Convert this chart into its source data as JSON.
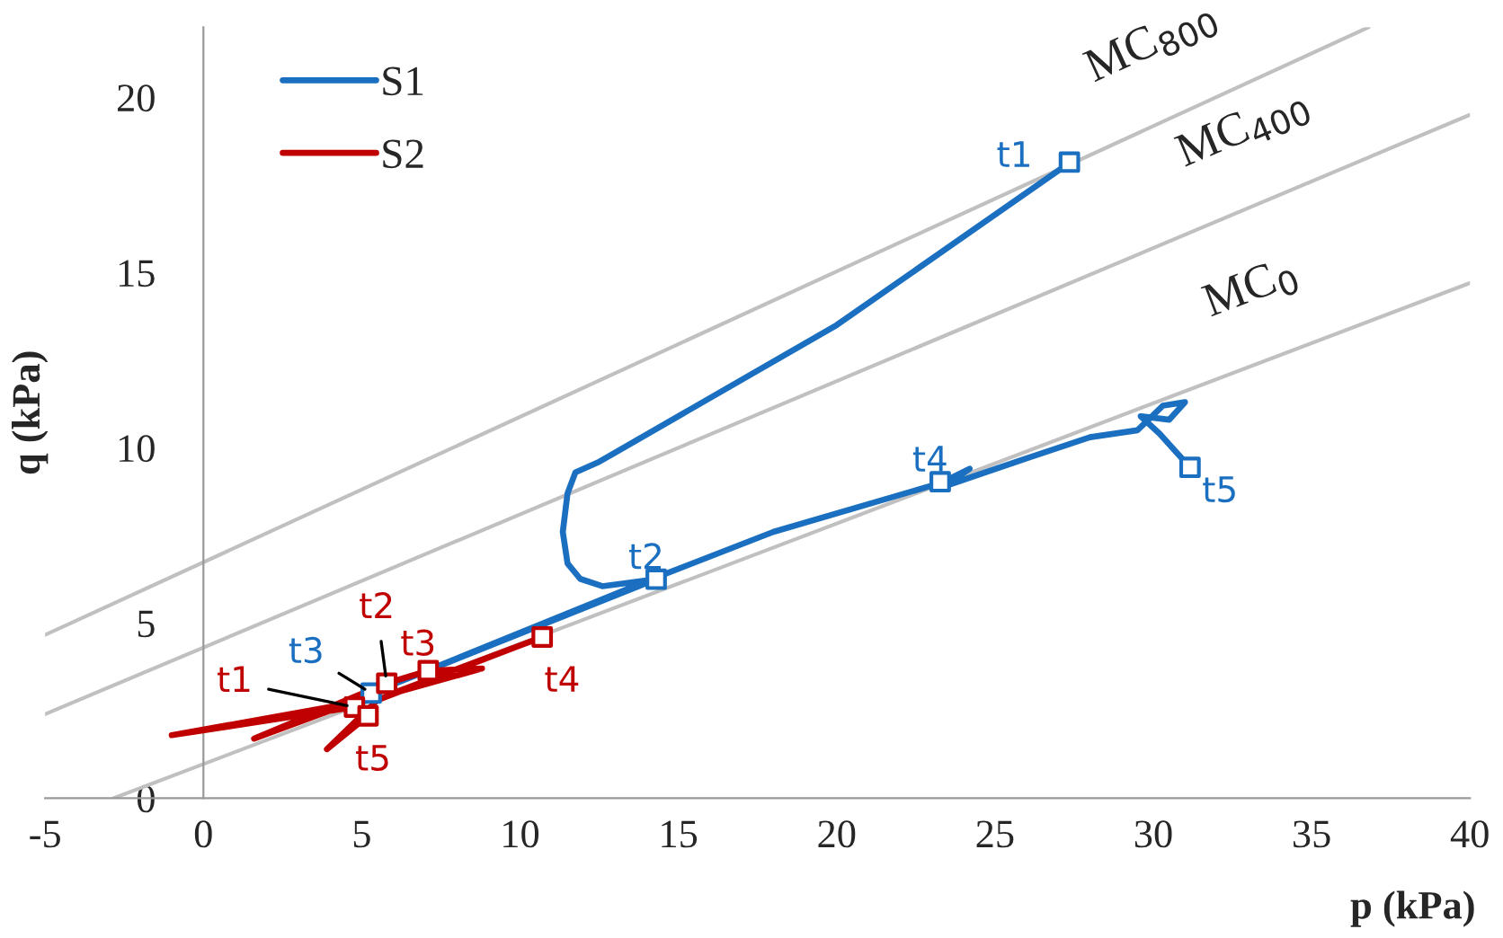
{
  "chart_data": {
    "type": "line",
    "xlabel": "p (kPa)",
    "ylabel": "q (kPa)",
    "xlim": [
      -5,
      40
    ],
    "ylim": [
      0,
      22
    ],
    "xticks": [
      -5,
      0,
      5,
      10,
      15,
      20,
      25,
      30,
      35,
      40
    ],
    "yticks": [
      0,
      5,
      10,
      15,
      20
    ],
    "grid": false,
    "legend": "top left",
    "line_style": "solid",
    "marker": "none",
    "series": [
      {
        "name": "MC$_{800}$",
        "color": "#c0c0c0",
        "x": [
          -5,
          36.8
        ],
        "values": [
          4.66,
          22
        ]
      },
      {
        "name": "MC$_{400}$",
        "color": "#c0c0c0",
        "x": [
          -5,
          40
        ],
        "values": [
          2.4,
          19.5
        ]
      },
      {
        "name": "MC$_{0}$",
        "color": "#c0c0c0",
        "x": [
          -2.84,
          40
        ],
        "values": [
          0,
          14.7
        ]
      },
      {
        "name": "S1",
        "color": "#1a6fc0",
        "x": [
          27.3,
          20,
          12.5,
          11.75,
          11.5,
          11.35,
          11.5,
          11.9,
          12.6,
          14.3,
          5.3,
          14.3,
          18,
          23.3,
          24.2,
          23.4,
          26,
          28,
          29.5,
          30.3,
          31,
          30.5,
          29.6,
          30.2,
          31.16
        ],
        "values": [
          18.1,
          13.5,
          9.6,
          9.3,
          8.7,
          7.6,
          6.7,
          6.26,
          6.05,
          6.25,
          3.0,
          6.3,
          7.6,
          9.0,
          9.4,
          8.9,
          9.7,
          10.3,
          10.5,
          11.2,
          11.3,
          10.8,
          10.9,
          10.4,
          9.44
        ]
      },
      {
        "name": "S2",
        "color": "#c00000",
        "x": [
          4.77,
          -1.0,
          4.6,
          1.6,
          5.79,
          7.1,
          8.8,
          6.0,
          10.7,
          5.5,
          3.9,
          5.2
        ],
        "values": [
          2.6,
          1.8,
          2.7,
          1.7,
          3.28,
          3.64,
          3.7,
          3.0,
          4.6,
          2.8,
          1.4,
          2.35
        ]
      },
      {
        "type": "scatter",
        "marker": "square",
        "color": "#1a6fc0",
        "x": [
          27.35,
          14.3,
          5.3,
          23.27,
          31.16
        ],
        "values": [
          18.15,
          6.25,
          3.0,
          9.03,
          9.44
        ],
        "value_labels": [
          "t1",
          "t2",
          "t3",
          "t4",
          "t5"
        ]
      },
      {
        "type": "scatter",
        "marker": "square",
        "color": "#c00000",
        "x": [
          4.77,
          5.79,
          7.1,
          10.7,
          5.2
        ],
        "values": [
          2.6,
          3.28,
          3.64,
          4.6,
          2.35
        ],
        "value_labels": [
          "t1",
          "t2",
          "t3",
          "t4",
          "t5"
        ]
      }
    ]
  }
}
